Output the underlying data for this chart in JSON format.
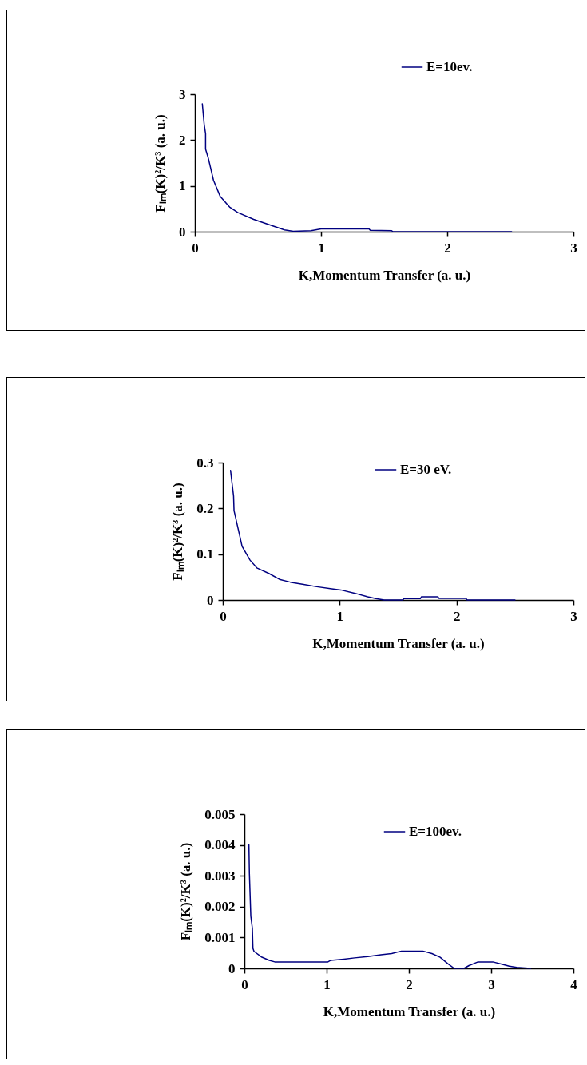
{
  "chart_data": [
    {
      "type": "line",
      "xlabel": "K,Momentum Transfer (a. u.)",
      "ylabel": "Fₗₘ(K)²/K³ (a. u.)",
      "xlim": [
        0,
        3
      ],
      "xticks": [
        0,
        1,
        2,
        3
      ],
      "ylim": [
        0,
        3
      ],
      "yticks": [
        0,
        1,
        2,
        3
      ],
      "legend": "top right",
      "series": [
        {
          "name": "E=10ev.",
          "color": "#000080",
          "x": [
            0.059,
            0.074,
            0.085,
            0.085,
            0.106,
            0.148,
            0.201,
            0.275,
            0.339,
            0.466,
            0.572,
            0.71,
            0.78,
            0.92,
            1.0,
            1.38,
            1.39,
            1.56,
            1.57,
            2.51
          ],
          "values": [
            2.79,
            2.34,
            2.14,
            1.8,
            1.61,
            1.12,
            0.77,
            0.54,
            0.42,
            0.27,
            0.17,
            0.04,
            0.01,
            0.02,
            0.06,
            0.06,
            0.03,
            0.02,
            0,
            0
          ]
        }
      ]
    },
    {
      "type": "line",
      "xlabel": "K,Momentum Transfer (a. u.)",
      "ylabel": "Fₗₘ(K)²/K³ (a. u.)",
      "xlim": [
        0,
        3
      ],
      "xticks": [
        0,
        1,
        2,
        3
      ],
      "ylim": [
        0,
        0.3
      ],
      "yticks": [
        0,
        0.1,
        0.2,
        0.3
      ],
      "legend": "top right",
      "series": [
        {
          "name": "E=30 eV.",
          "color": "#000080",
          "x": [
            0.066,
            0.092,
            0.096,
            0.165,
            0.233,
            0.291,
            0.394,
            0.485,
            0.577,
            0.691,
            0.805,
            0.92,
            1.01,
            1.126,
            1.24,
            1.31,
            1.38,
            1.54,
            1.55,
            1.69,
            1.7,
            1.84,
            1.85,
            2.08,
            2.09,
            2.5
          ],
          "values": [
            0.283,
            0.227,
            0.195,
            0.117,
            0.087,
            0.07,
            0.058,
            0.045,
            0.039,
            0.034,
            0.029,
            0.025,
            0.022,
            0.015,
            0.007,
            0.003,
            0,
            0,
            0.003,
            0.003,
            0.007,
            0.007,
            0.0035,
            0.0035,
            0,
            0
          ]
        }
      ]
    },
    {
      "type": "line",
      "xlabel": "K,Momentum Transfer (a. u.)",
      "ylabel": "Fₗₘ(K)²/K³ (a. u.)",
      "xlim": [
        0,
        4
      ],
      "xticks": [
        0,
        1,
        2,
        3,
        4
      ],
      "ylim": [
        0,
        0.005
      ],
      "yticks": [
        0,
        0.001,
        0.002,
        0.003,
        0.004,
        0.005
      ],
      "legend": "top right",
      "series": [
        {
          "name": "E=100ev.",
          "color": "#000080",
          "x": [
            0.055,
            0.061,
            0.078,
            0.097,
            0.104,
            0.117,
            0.207,
            0.304,
            0.369,
            1.016,
            1.05,
            1.21,
            1.34,
            1.5,
            1.66,
            1.79,
            1.91,
            2.17,
            2.28,
            2.38,
            2.47,
            2.55,
            2.67,
            2.73,
            2.84,
            3.02,
            3.12,
            3.22,
            3.31,
            3.48
          ],
          "values": [
            0.004,
            0.00307,
            0.00169,
            0.0013,
            0.00065,
            0.00055,
            0.00037,
            0.00026,
            0.00021,
            0.00021,
            0.00026,
            0.0003,
            0.00034,
            0.00038,
            0.00044,
            0.00048,
            0.00056,
            0.00056,
            0.00048,
            0.00036,
            0.00016,
            0,
            0,
            9e-05,
            0.00021,
            0.00021,
            0.00014,
            7e-05,
            3e-05,
            0
          ]
        }
      ]
    }
  ]
}
